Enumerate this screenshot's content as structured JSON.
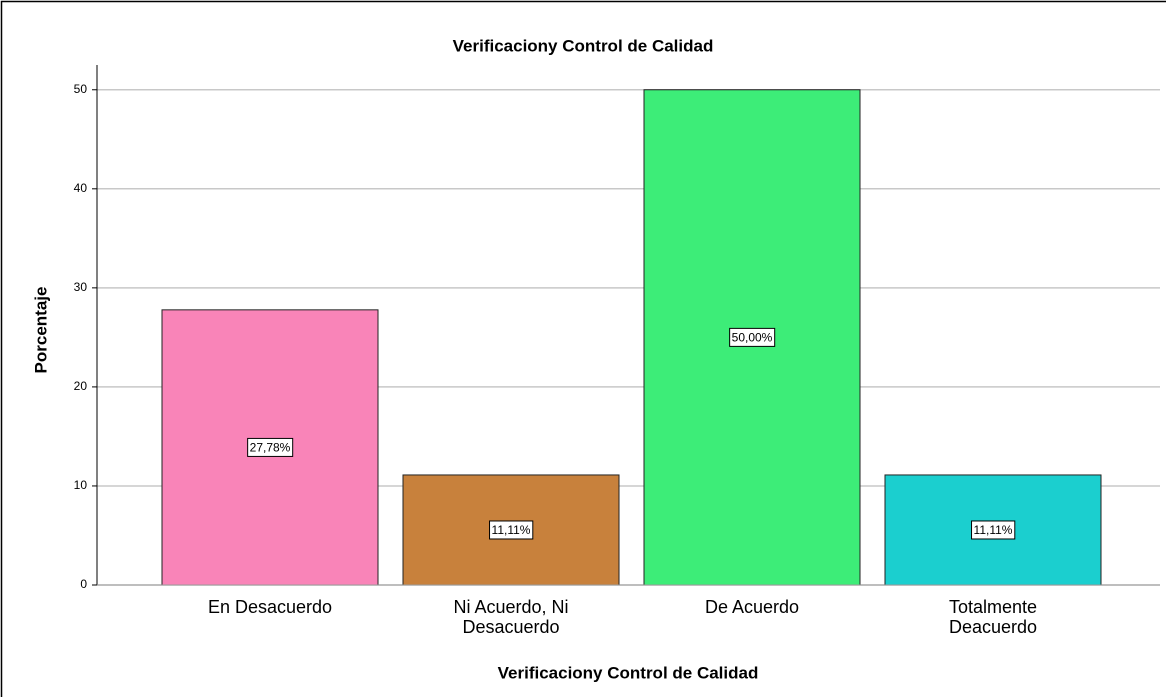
{
  "chart_data": {
    "type": "bar",
    "title": "Verificaciony Control de Calidad",
    "x_label": "Verificaciony Control de Calidad",
    "y_label": "Porcentaje",
    "categories": [
      "En Desacuerdo",
      "Ni Acuerdo, Ni Desacuerdo",
      "De Acuerdo",
      "Totalmente Deacuerdo"
    ],
    "values": [
      27.78,
      11.11,
      50.0,
      11.11
    ],
    "value_labels": [
      "27,78%",
      "11,11%",
      "50,00%",
      "11,11%"
    ],
    "colors": [
      "#f984b8",
      "#c8813c",
      "#3ded78",
      "#1bcfcf"
    ],
    "ylim": [
      0,
      52.5
    ],
    "yticks": [
      0,
      10,
      20,
      30,
      40,
      50
    ],
    "grid": true
  }
}
